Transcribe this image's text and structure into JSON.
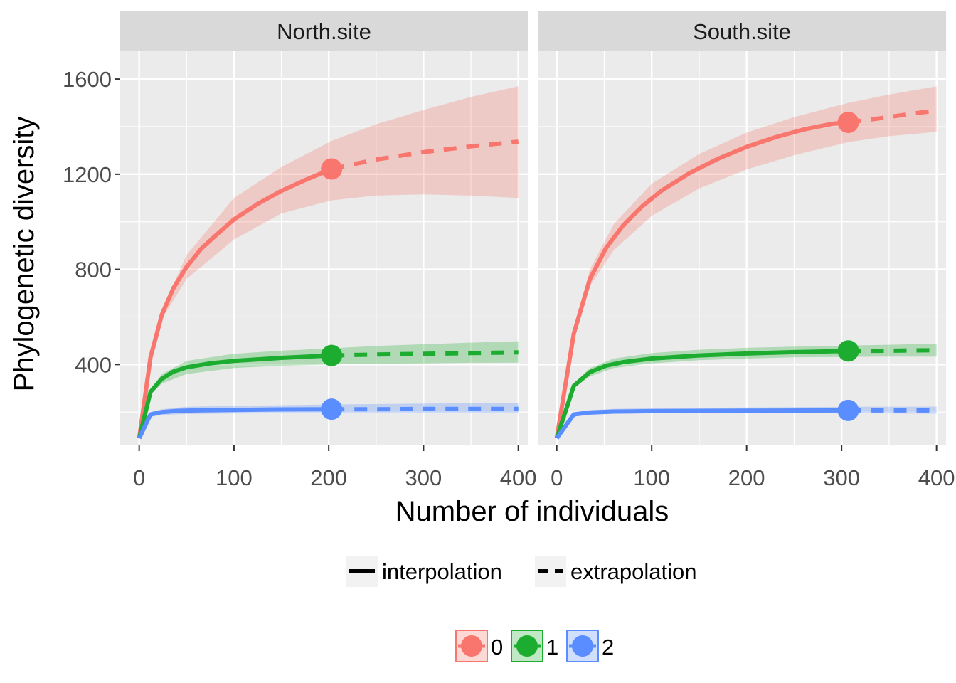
{
  "chart_data": {
    "type": "line",
    "xlabel": "Number of individuals",
    "ylabel": "Phylogenetic diversity",
    "xlim": [
      -20,
      410
    ],
    "ylim": [
      60,
      1720
    ],
    "x_ticks": [
      0,
      100,
      200,
      300,
      400
    ],
    "x_tick_labels": [
      "0",
      "100",
      "200",
      "300",
      "400"
    ],
    "y_ticks": [
      400,
      800,
      1200,
      1600
    ],
    "y_tick_labels": [
      "400",
      "800",
      "1200",
      "1600"
    ],
    "grid": true,
    "colors": {
      "0": "#f8766d",
      "1": "#1cad30",
      "2": "#5a8dff"
    },
    "method_legend": {
      "position": "bottom",
      "entries": [
        {
          "label": "interpolation",
          "style": "solid"
        },
        {
          "label": "extrapolation",
          "style": "dashed"
        }
      ]
    },
    "order_legend": {
      "position": "bottom",
      "entries": [
        {
          "label": "0",
          "color": "#f8766d"
        },
        {
          "label": "1",
          "color": "#1cad30"
        },
        {
          "label": "2",
          "color": "#5a8dff"
        }
      ]
    },
    "panels": [
      {
        "name": "North.site",
        "series": [
          {
            "order": "0",
            "color": "#f8766d",
            "observed": {
              "x": 203,
              "y": 1222
            },
            "interpolation": {
              "x": [
                0,
                12,
                24,
                36,
                50,
                65,
                80,
                100,
                125,
                150,
                175,
                203
              ],
              "y": [
                90,
                430,
                610,
                720,
                810,
                885,
                940,
                1010,
                1075,
                1130,
                1175,
                1222
              ]
            },
            "extrapolation": {
              "x": [
                203,
                250,
                300,
                350,
                400
              ],
              "y": [
                1222,
                1262,
                1293,
                1317,
                1337
              ]
            },
            "ci_lower": {
              "x": [
                0,
                12,
                24,
                50,
                100,
                150,
                203,
                250,
                300,
                350,
                400
              ],
              "y": [
                90,
                420,
                590,
                760,
                925,
                1035,
                1090,
                1110,
                1115,
                1110,
                1100
              ]
            },
            "ci_upper": {
              "x": [
                0,
                12,
                24,
                50,
                100,
                150,
                203,
                250,
                300,
                350,
                400
              ],
              "y": [
                90,
                440,
                630,
                860,
                1100,
                1230,
                1340,
                1410,
                1470,
                1525,
                1570
              ]
            }
          },
          {
            "order": "1",
            "color": "#1cad30",
            "observed": {
              "x": 203,
              "y": 438
            },
            "interpolation": {
              "x": [
                0,
                12,
                24,
                36,
                50,
                75,
                100,
                150,
                203
              ],
              "y": [
                90,
                285,
                340,
                370,
                388,
                405,
                415,
                428,
                438
              ]
            },
            "extrapolation": {
              "x": [
                203,
                250,
                300,
                350,
                400
              ],
              "y": [
                438,
                442,
                445,
                448,
                451
              ]
            },
            "ci_lower": {
              "x": [
                0,
                12,
                24,
                50,
                100,
                150,
                203,
                250,
                300,
                350,
                400
              ],
              "y": [
                90,
                275,
                320,
                360,
                385,
                395,
                400,
                403,
                405,
                407,
                408
              ]
            },
            "ci_upper": {
              "x": [
                0,
                12,
                24,
                50,
                100,
                150,
                203,
                250,
                300,
                350,
                400
              ],
              "y": [
                90,
                295,
                360,
                415,
                445,
                458,
                468,
                478,
                485,
                492,
                498
              ]
            }
          },
          {
            "order": "2",
            "color": "#5a8dff",
            "observed": {
              "x": 203,
              "y": 212
            },
            "interpolation": {
              "x": [
                0,
                12,
                24,
                40,
                60,
                100,
                150,
                203
              ],
              "y": [
                90,
                190,
                200,
                205,
                207,
                209,
                211,
                212
              ]
            },
            "extrapolation": {
              "x": [
                203,
                250,
                300,
                350,
                400
              ],
              "y": [
                212,
                212,
                213,
                213,
                213
              ]
            },
            "ci_lower": {
              "x": [
                0,
                12,
                24,
                50,
                100,
                203,
                300,
                400
              ],
              "y": [
                90,
                180,
                188,
                192,
                194,
                196,
                196,
                195
              ]
            },
            "ci_upper": {
              "x": [
                0,
                12,
                24,
                50,
                100,
                203,
                300,
                400
              ],
              "y": [
                90,
                200,
                212,
                222,
                226,
                232,
                236,
                238
              ]
            }
          }
        ]
      },
      {
        "name": "South.site",
        "series": [
          {
            "order": "0",
            "color": "#f8766d",
            "observed": {
              "x": 307,
              "y": 1418
            },
            "interpolation": {
              "x": [
                0,
                18,
                35,
                52,
                70,
                90,
                110,
                140,
                170,
                200,
                230,
                260,
                290,
                307
              ],
              "y": [
                90,
                530,
                760,
                890,
                985,
                1065,
                1130,
                1205,
                1265,
                1315,
                1355,
                1388,
                1412,
                1418
              ]
            },
            "extrapolation": {
              "x": [
                307,
                340,
                370,
                400
              ],
              "y": [
                1418,
                1435,
                1452,
                1468
              ]
            },
            "ci_lower": {
              "x": [
                0,
                18,
                35,
                60,
                100,
                150,
                200,
                250,
                307,
                350,
                400
              ],
              "y": [
                90,
                520,
                730,
                880,
                1025,
                1140,
                1220,
                1280,
                1335,
                1360,
                1378
              ]
            },
            "ci_upper": {
              "x": [
                0,
                18,
                35,
                60,
                100,
                150,
                200,
                250,
                307,
                350,
                400
              ],
              "y": [
                90,
                545,
                800,
                990,
                1160,
                1285,
                1375,
                1440,
                1500,
                1535,
                1570
              ]
            }
          },
          {
            "order": "1",
            "color": "#1cad30",
            "observed": {
              "x": 307,
              "y": 457
            },
            "interpolation": {
              "x": [
                0,
                18,
                35,
                52,
                70,
                100,
                150,
                200,
                250,
                307
              ],
              "y": [
                90,
                310,
                368,
                395,
                410,
                425,
                438,
                446,
                452,
                457
              ]
            },
            "extrapolation": {
              "x": [
                307,
                350,
                400
              ],
              "y": [
                457,
                458,
                460
              ]
            },
            "ci_lower": {
              "x": [
                0,
                18,
                35,
                60,
                100,
                150,
                200,
                250,
                307,
                350,
                400
              ],
              "y": [
                90,
                300,
                350,
                385,
                405,
                418,
                425,
                430,
                432,
                433,
                433
              ]
            },
            "ci_upper": {
              "x": [
                0,
                18,
                35,
                60,
                100,
                150,
                200,
                250,
                307,
                350,
                400
              ],
              "y": [
                90,
                320,
                385,
                425,
                448,
                462,
                470,
                475,
                480,
                483,
                487
              ]
            }
          },
          {
            "order": "2",
            "color": "#5a8dff",
            "observed": {
              "x": 307,
              "y": 207
            },
            "interpolation": {
              "x": [
                0,
                18,
                35,
                60,
                100,
                200,
                307
              ],
              "y": [
                90,
                190,
                198,
                202,
                204,
                206,
                207
              ]
            },
            "extrapolation": {
              "x": [
                307,
                350,
                400
              ],
              "y": [
                207,
                207,
                207
              ]
            },
            "ci_lower": {
              "x": [
                0,
                18,
                35,
                60,
                100,
                200,
                307,
                400
              ],
              "y": [
                90,
                182,
                190,
                193,
                195,
                196,
                195,
                193
              ]
            },
            "ci_upper": {
              "x": [
                0,
                18,
                35,
                60,
                100,
                200,
                307,
                400
              ],
              "y": [
                90,
                198,
                208,
                213,
                216,
                219,
                222,
                223
              ]
            }
          }
        ]
      }
    ]
  }
}
